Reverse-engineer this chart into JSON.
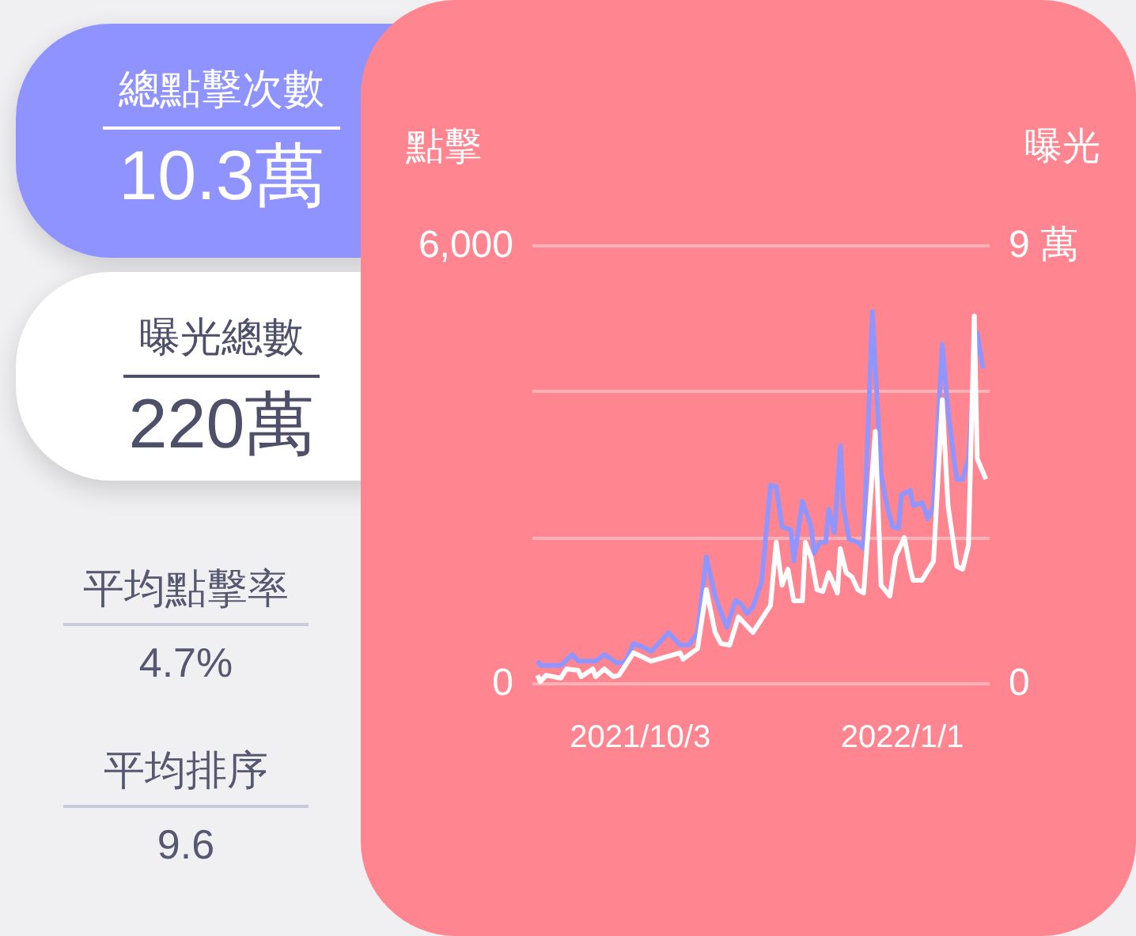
{
  "chart_data": [
    {
      "type": "other",
      "annotations": [
        "總點擊次數",
        "10.3萬",
        "曝光總數",
        "220萬",
        "平均點擊率",
        "4.7%",
        "平均排序",
        "9.6"
      ]
    },
    {
      "type": "line",
      "ylabel": "點擊",
      "y2label": "曝光",
      "xlim": [
        "2021-08-27",
        "2022-01-31"
      ],
      "xticks": [
        {
          "value": "2021-10-03",
          "label": "2021/10/3"
        },
        {
          "value": "2022-01-01",
          "label": "2022/1/1"
        }
      ],
      "ylim": [
        0,
        6000
      ],
      "yticks": [
        0,
        {
          "value": 2000,
          "label": null
        },
        {
          "value": 4000,
          "label": null
        },
        {
          "value": 6000,
          "label": "6,000"
        }
      ],
      "y2lim": [
        0,
        9
      ],
      "y2ticks": [
        0,
        {
          "value": 9,
          "label": "9 萬"
        }
      ],
      "grid": "y",
      "series": [
        {
          "color": "#9095ff",
          "x": [
            "2021-08-29",
            "2021-08-30",
            "2021-09-06",
            "2021-09-10",
            "2021-09-12",
            "2021-09-18",
            "2021-09-21",
            "2021-09-25",
            "2021-09-28",
            "2021-10-01",
            "2021-10-05",
            "2021-10-07",
            "2021-10-13",
            "2021-10-17",
            "2021-10-20",
            "2021-10-23",
            "2021-10-26",
            "2021-10-29",
            "2021-11-02",
            "2021-11-05",
            "2021-11-07",
            "2021-11-09",
            "2021-11-11",
            "2021-11-14",
            "2021-11-17",
            "2021-11-19",
            "2021-11-21",
            "2021-11-24",
            "2021-11-25",
            "2021-11-28",
            "2021-12-01",
            "2021-12-02",
            "2021-12-04",
            "2021-12-06",
            "2021-12-07",
            "2021-12-09",
            "2021-12-11",
            "2021-12-12",
            "2021-12-14",
            "2021-12-17",
            "2021-12-19",
            "2021-12-22",
            "2021-12-25",
            "2021-12-27",
            "2021-12-29",
            "2021-12-31",
            "2022-01-01",
            "2022-01-04",
            "2022-01-05",
            "2022-01-08",
            "2022-01-09",
            "2022-01-10",
            "2022-01-12",
            "2022-01-15",
            "2022-01-17",
            "2022-01-19",
            "2022-01-20",
            "2022-01-22",
            "2022-01-24",
            "2022-01-27",
            "2022-01-29"
          ],
          "values": [
            300,
            240,
            240,
            390,
            300,
            300,
            390,
            280,
            280,
            540,
            480,
            430,
            690,
            520,
            520,
            690,
            1730,
            1190,
            760,
            1130,
            1080,
            950,
            1040,
            1390,
            2710,
            2690,
            2140,
            2100,
            1670,
            2490,
            2140,
            1780,
            1930,
            1930,
            2380,
            2060,
            3250,
            2430,
            1970,
            1930,
            1840,
            5090,
            2860,
            2430,
            2140,
            2120,
            2580,
            2640,
            2430,
            2470,
            2380,
            2250,
            2430,
            4640,
            3730,
            3080,
            2790,
            2790,
            3080,
            4800,
            4310
          ]
        },
        {
          "color": "#ffffff",
          "axis": "y2",
          "x": [
            "2021-08-29",
            "2021-08-30",
            "2021-09-01",
            "2021-09-06",
            "2021-09-08",
            "2021-09-12",
            "2021-09-13",
            "2021-09-17",
            "2021-09-18",
            "2021-09-21",
            "2021-09-24",
            "2021-09-26",
            "2021-10-01",
            "2021-10-07",
            "2021-10-17",
            "2021-10-18",
            "2021-10-23",
            "2021-10-26",
            "2021-10-29",
            "2021-10-31",
            "2021-11-03",
            "2021-11-06",
            "2021-11-11",
            "2021-11-17",
            "2021-11-19",
            "2021-11-21",
            "2021-11-23",
            "2021-11-25",
            "2021-11-28",
            "2021-11-29",
            "2021-12-01",
            "2021-12-03",
            "2021-12-05",
            "2021-12-07",
            "2021-12-10",
            "2021-12-11",
            "2021-12-13",
            "2021-12-15",
            "2021-12-17",
            "2021-12-19",
            "2021-12-23",
            "2021-12-25",
            "2021-12-28",
            "2021-12-30",
            "2022-01-02",
            "2022-01-04",
            "2022-01-05",
            "2022-01-08",
            "2022-01-12",
            "2022-01-15",
            "2022-01-17",
            "2022-01-20",
            "2022-01-22",
            "2022-01-24",
            "2022-01-26",
            "2022-01-27",
            "2022-01-30"
          ],
          "values": [
            0.16,
            0.03,
            0.16,
            0.1,
            0.29,
            0.26,
            0.13,
            0.29,
            0.13,
            0.29,
            0.13,
            0.16,
            0.62,
            0.45,
            0.62,
            0.49,
            0.71,
            1.92,
            1.04,
            0.81,
            0.78,
            1.36,
            1.04,
            1.59,
            2.89,
            2.01,
            2.34,
            1.69,
            1.69,
            2.89,
            2.57,
            1.92,
            1.88,
            2.27,
            1.85,
            2.76,
            2.27,
            2.18,
            1.92,
            1.85,
            5.17,
            2.01,
            1.79,
            2.6,
            2.99,
            2.34,
            2.11,
            2.11,
            2.5,
            5.82,
            3.64,
            2.4,
            2.34,
            2.83,
            7.54,
            4.61,
            4.19
          ]
        }
      ]
    }
  ]
}
